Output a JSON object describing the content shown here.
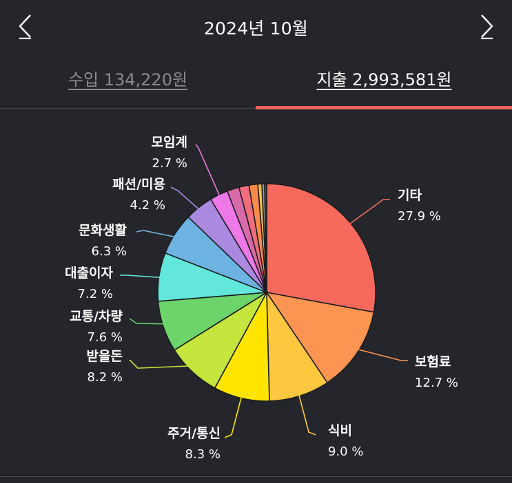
{
  "header": {
    "title": "2024년 10월",
    "prev_icon": "chevron-left-icon",
    "next_icon": "chevron-right-icon"
  },
  "tabs": {
    "income_label": "수입 134,220원",
    "expense_label": "지출 2,993,581원",
    "active": "expense"
  },
  "colors": {
    "background": "#25262b",
    "accent": "#f0625d",
    "text": "#ffffff",
    "muted": "#8a8b90"
  },
  "chart_data": {
    "type": "pie",
    "title": "",
    "start_angle": "12 o'clock, clockwise",
    "unit": "%",
    "slices": [
      {
        "label": "기타",
        "value": 27.9,
        "display": "27.9 %",
        "color": "#f66a5e"
      },
      {
        "label": "보험료",
        "value": 12.7,
        "display": "12.7 %",
        "color": "#fb9551"
      },
      {
        "label": "식비",
        "value": 9.0,
        "display": "9.0 %",
        "color": "#fdc840"
      },
      {
        "label": "주거/통신",
        "value": 8.3,
        "display": "8.3 %",
        "color": "#fde500"
      },
      {
        "label": "받을돈",
        "value": 8.2,
        "display": "8.2 %",
        "color": "#c4e53c"
      },
      {
        "label": "교통/차량",
        "value": 7.6,
        "display": "7.6 %",
        "color": "#6dd36b"
      },
      {
        "label": "대출이자",
        "value": 7.2,
        "display": "7.2 %",
        "color": "#62e7da"
      },
      {
        "label": "문화생활",
        "value": 6.3,
        "display": "6.3 %",
        "color": "#6db3e2"
      },
      {
        "label": "패션/미용",
        "value": 4.2,
        "display": "4.2 %",
        "color": "#a98ae0"
      },
      {
        "label": "모임계",
        "value": 2.7,
        "display": "2.7 %",
        "color": "#ee78e8"
      },
      {
        "label": "",
        "value": 1.8,
        "display": "",
        "color": "#d96aa8"
      },
      {
        "label": "",
        "value": 1.5,
        "display": "",
        "color": "#f06d7c"
      },
      {
        "label": "",
        "value": 1.3,
        "display": "",
        "color": "#fb8a4a"
      },
      {
        "label": "",
        "value": 0.6,
        "display": "",
        "color": "#f6c04a"
      },
      {
        "label": "",
        "value": 0.4,
        "display": "",
        "color": "#9a9a9a"
      },
      {
        "label": "",
        "value": 0.3,
        "display": "",
        "color": "#4d4d4d"
      }
    ]
  }
}
